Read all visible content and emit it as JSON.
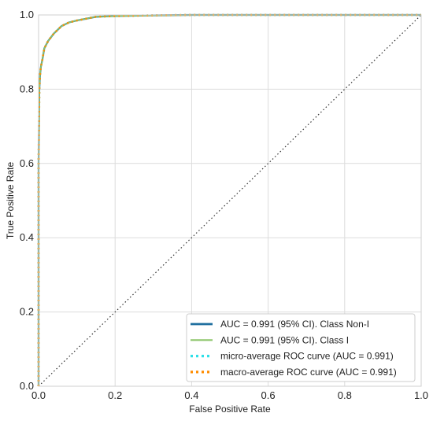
{
  "chart_data": {
    "type": "line",
    "title": "",
    "xlabel": "False Positive Rate",
    "ylabel": "True Positive Rate",
    "xlim": [
      0,
      1.0
    ],
    "ylim": [
      0,
      1.0
    ],
    "grid": true,
    "legend_position": "bottom-right",
    "x_ticks": [
      "0.0",
      "0.2",
      "0.4",
      "0.6",
      "0.8",
      "1.0"
    ],
    "y_ticks": [
      "0.0",
      "0.2",
      "0.4",
      "0.6",
      "0.8",
      "1.0"
    ],
    "series": [
      {
        "name": "AUC = 0.991 (95% CI). Class Non-I",
        "color": "#1f6f9f",
        "style": "solid",
        "x": [
          0,
          0,
          0.002,
          0.004,
          0.006,
          0.01,
          0.015,
          0.025,
          0.04,
          0.06,
          0.08,
          0.1,
          0.15,
          0.2,
          0.3,
          0.4,
          1.0
        ],
        "y": [
          0,
          0.6,
          0.8,
          0.84,
          0.86,
          0.88,
          0.91,
          0.93,
          0.95,
          0.97,
          0.98,
          0.985,
          0.995,
          0.997,
          0.999,
          1.0,
          1.0
        ]
      },
      {
        "name": "AUC = 0.991 (95% CI). Class I",
        "color": "#8dc56b",
        "style": "solid",
        "x": [
          0,
          0,
          0.002,
          0.004,
          0.006,
          0.01,
          0.015,
          0.025,
          0.04,
          0.06,
          0.08,
          0.1,
          0.15,
          0.2,
          0.3,
          0.4,
          1.0
        ],
        "y": [
          0,
          0.6,
          0.8,
          0.84,
          0.86,
          0.88,
          0.91,
          0.93,
          0.95,
          0.97,
          0.98,
          0.985,
          0.995,
          0.997,
          0.999,
          1.0,
          1.0
        ]
      },
      {
        "name": "micro-average ROC curve (AUC = 0.991)",
        "color": "#2fe0e8",
        "style": "dotted",
        "x": [
          0,
          0,
          0.002,
          0.004,
          0.006,
          0.01,
          0.015,
          0.025,
          0.04,
          0.06,
          0.08,
          0.1,
          0.15,
          0.2,
          0.3,
          0.4,
          1.0
        ],
        "y": [
          0,
          0.6,
          0.8,
          0.84,
          0.86,
          0.88,
          0.91,
          0.93,
          0.95,
          0.97,
          0.98,
          0.985,
          0.995,
          0.997,
          0.999,
          1.0,
          1.0
        ]
      },
      {
        "name": "macro-average ROC curve (AUC = 0.991)",
        "color": "#ff8c00",
        "style": "dotted",
        "x": [
          0,
          0,
          0.002,
          0.004,
          0.006,
          0.01,
          0.015,
          0.025,
          0.04,
          0.06,
          0.08,
          0.1,
          0.15,
          0.2,
          0.3,
          0.4,
          1.0
        ],
        "y": [
          0,
          0.6,
          0.8,
          0.84,
          0.86,
          0.88,
          0.91,
          0.93,
          0.95,
          0.97,
          0.98,
          0.985,
          0.995,
          0.997,
          0.999,
          1.0,
          1.0
        ]
      }
    ],
    "reference_line": {
      "x": [
        0,
        1
      ],
      "y": [
        0,
        1
      ],
      "color": "#333333",
      "style": "dotted"
    }
  }
}
